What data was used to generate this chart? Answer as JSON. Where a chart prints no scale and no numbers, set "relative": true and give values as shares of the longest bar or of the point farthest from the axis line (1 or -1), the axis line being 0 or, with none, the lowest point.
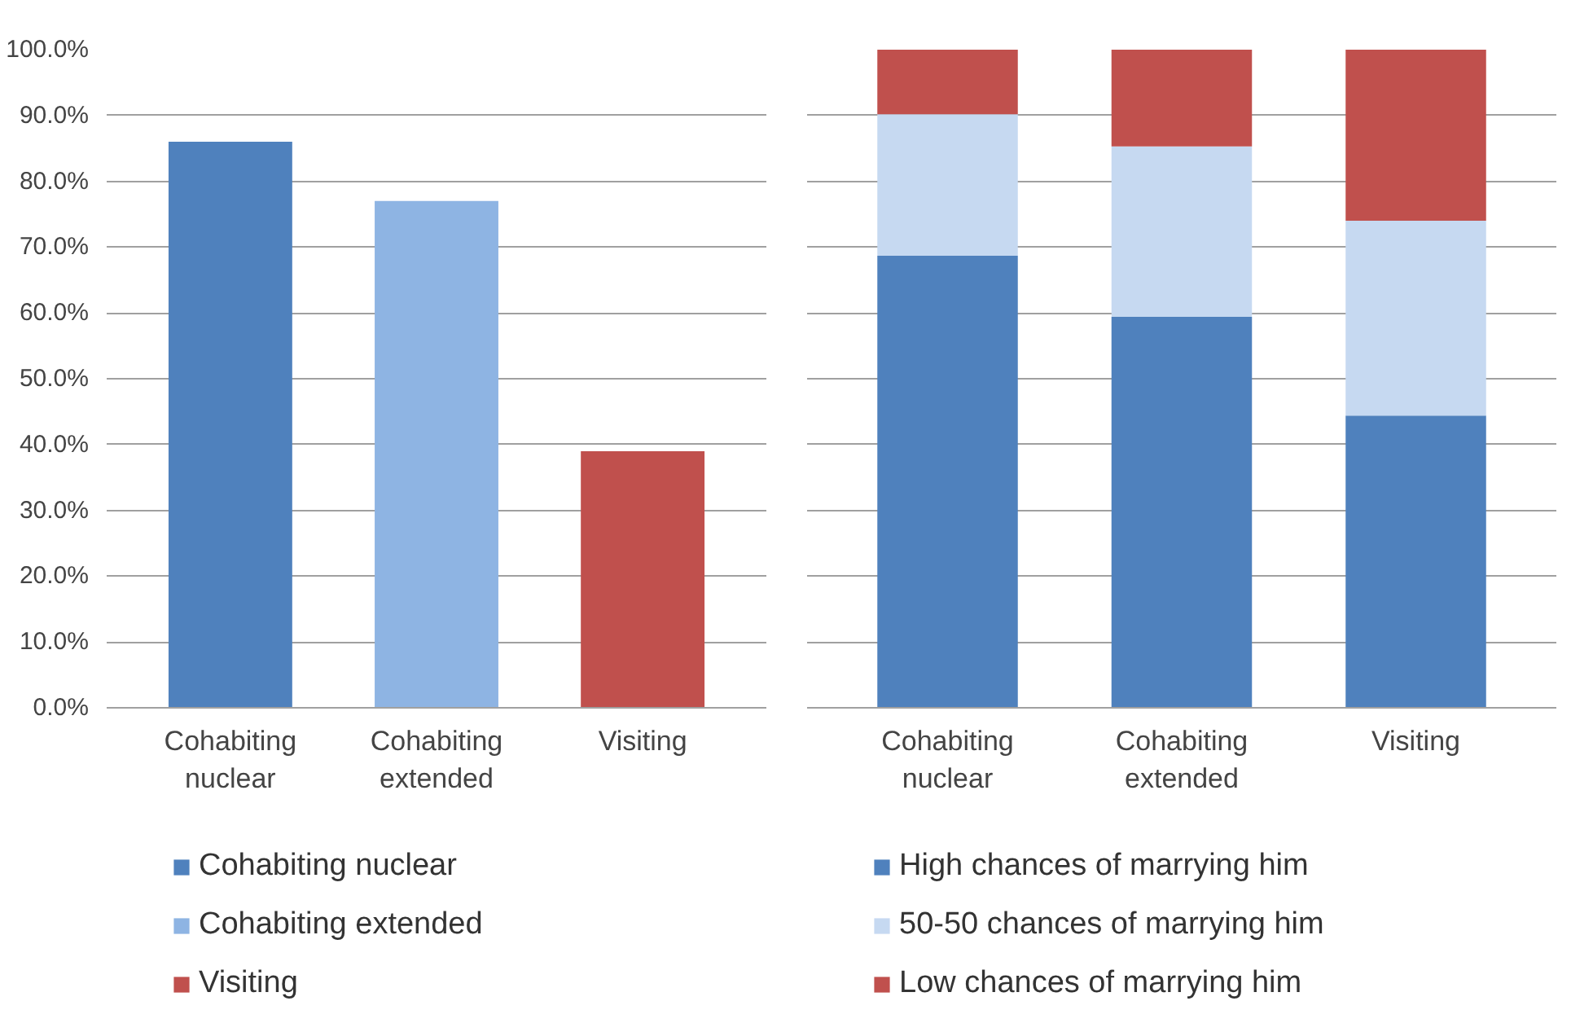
{
  "chart_data": [
    {
      "type": "bar",
      "categories": [
        "Cohabiting nuclear",
        "Cohabiting extended",
        "Visiting"
      ],
      "series": [
        {
          "name": "Cohabiting nuclear",
          "color": "#4f81bd",
          "values": [
            86,
            null,
            null
          ]
        },
        {
          "name": "Cohabiting extended",
          "color": "#8eb4e3",
          "values": [
            null,
            77,
            null
          ]
        },
        {
          "name": "Visiting",
          "color": "#c0504d",
          "values": [
            null,
            null,
            39
          ]
        }
      ],
      "ylim": [
        0,
        100
      ],
      "yticks": [
        {
          "value": 0,
          "label": "0.0%"
        },
        {
          "value": 10,
          "label": "10.0%"
        },
        {
          "value": 20,
          "label": "20.0%"
        },
        {
          "value": 30,
          "label": "30.0%"
        },
        {
          "value": 40,
          "label": "40.0%"
        },
        {
          "value": 50,
          "label": "50.0%"
        },
        {
          "value": 60,
          "label": "60.0%"
        },
        {
          "value": 70,
          "label": "70.0%"
        },
        {
          "value": 80,
          "label": "80.0%"
        },
        {
          "value": 90,
          "label": "90.0%"
        },
        {
          "value": 100,
          "label": "100.0%"
        }
      ],
      "grid": "y",
      "legend": "bottom"
    },
    {
      "type": "bar",
      "stacked": true,
      "relative": true,
      "categories": [
        "Cohabiting nuclear",
        "Cohabiting extended",
        "Visiting"
      ],
      "series": [
        {
          "name": "High chances of marrying him",
          "color": "#4f81bd",
          "values": [
            0.687,
            0.594,
            0.444
          ]
        },
        {
          "name": "50-50 chances of marrying him",
          "color": "#c6d9f1",
          "values": [
            0.215,
            0.259,
            0.296
          ]
        },
        {
          "name": "Low chances of marrying him",
          "color": "#c0504d",
          "values": [
            0.098,
            0.147,
            0.26
          ]
        }
      ],
      "grid": "y",
      "legend": "bottom"
    }
  ]
}
